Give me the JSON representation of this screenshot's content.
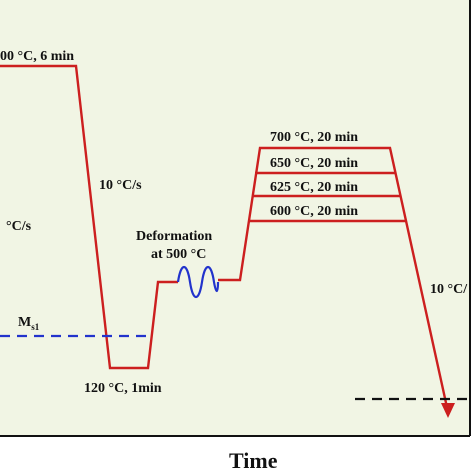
{
  "colors": {
    "panel_bg": "#f1f5e4",
    "profile_line": "#cc1f1f",
    "ms_line": "#2233cc",
    "deformation_coil": "#2233cc",
    "dashed_black": "#111111",
    "axis": "#111111"
  },
  "labels": {
    "austenitize": "00 °C, 6 min",
    "cool_rate_left": "°C/s",
    "cool_rate_mid": "10 °C/s",
    "ms_main": "M",
    "ms_sub": "s1",
    "quench_hold": "120 °C, 1min",
    "deformation_line1": "Deformation",
    "deformation_line2": "at 500 °C",
    "partition_700": "700 °C, 20 min",
    "partition_650": "650 °C, 20 min",
    "partition_625": "625 °C, 20 min",
    "partition_600": "600 °C, 20 min",
    "cool_rate_right": "10 °C/",
    "x_axis_title": "Time"
  }
}
